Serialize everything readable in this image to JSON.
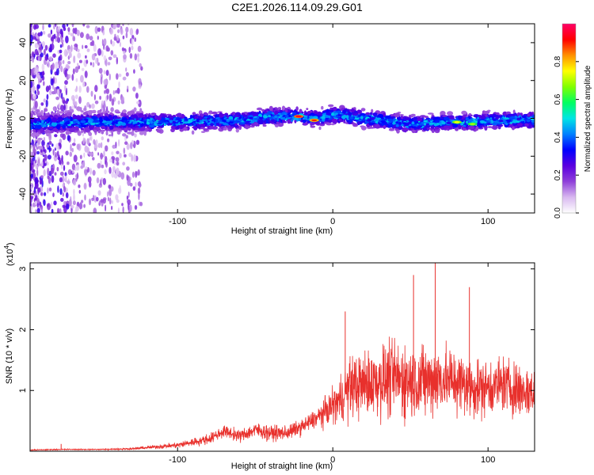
{
  "title": "C2E1.2026.114.09.29.G01",
  "chart_data": [
    {
      "type": "heatmap",
      "xlabel": "Height of straight line (km)",
      "ylabel": "Frequency (Hz)",
      "xlim": [
        -195,
        130
      ],
      "ylim": [
        -50,
        50
      ],
      "xticks": [
        -100,
        0,
        100
      ],
      "yticks": [
        -40,
        -20,
        0,
        20,
        40
      ],
      "colorbar": {
        "label": "Normalized spectral amplitude",
        "range": [
          0,
          1
        ],
        "ticks": [
          0.0,
          0.2,
          0.4,
          0.6,
          0.8
        ],
        "colormap": [
          "#ffffff",
          "#d8b8f0",
          "#8f3fd9",
          "#5a00e0",
          "#0000ff",
          "#0080ff",
          "#00e5e5",
          "#00ff60",
          "#80ff00",
          "#ffff00",
          "#ff9000",
          "#ff0000",
          "#ff0066"
        ]
      },
      "ridge": {
        "x": [
          -195,
          -150,
          -100,
          -60,
          -40,
          -25,
          -10,
          0,
          20,
          50,
          80,
          110,
          130
        ],
        "center_hz": [
          -3,
          -2,
          -2,
          -1,
          1,
          1,
          0,
          2,
          0,
          -3,
          -2,
          -1,
          -1
        ]
      },
      "peaks": [
        {
          "x": -22,
          "y": 1,
          "amplitude": 0.95
        },
        {
          "x": -12,
          "y": -1,
          "amplitude": 0.9
        },
        {
          "x": 80,
          "y": -2,
          "amplitude": 0.75
        },
        {
          "x": 90,
          "y": -3,
          "amplitude": 0.7
        }
      ]
    },
    {
      "type": "line",
      "xlabel": "Height of straight line (km)",
      "ylabel": "SNR (10 * v/v)",
      "scale_label": "(x10",
      "scale_exp": "4",
      "xlim": [
        -195,
        130
      ],
      "ylim": [
        0,
        3.1
      ],
      "xticks": [
        -100,
        0,
        100
      ],
      "yticks": [
        1,
        2,
        3
      ],
      "color": "#e8302c",
      "envelope": {
        "x": [
          -195,
          -175,
          -150,
          -130,
          -120,
          -100,
          -80,
          -70,
          -60,
          -50,
          -40,
          -30,
          -20,
          -10,
          0,
          5,
          10,
          20,
          30,
          40,
          50,
          60,
          70,
          80,
          90,
          100,
          110,
          120,
          130
        ],
        "mean": [
          0.02,
          0.03,
          0.03,
          0.04,
          0.06,
          0.1,
          0.2,
          0.33,
          0.25,
          0.35,
          0.3,
          0.3,
          0.4,
          0.55,
          0.75,
          0.85,
          1.05,
          1.1,
          1.15,
          1.2,
          1.15,
          1.15,
          1.2,
          1.15,
          1.05,
          1.05,
          1.1,
          1.0,
          0.95
        ],
        "spread": [
          0.01,
          0.01,
          0.01,
          0.02,
          0.03,
          0.06,
          0.1,
          0.12,
          0.12,
          0.15,
          0.15,
          0.15,
          0.15,
          0.2,
          0.35,
          0.45,
          0.6,
          0.65,
          0.7,
          0.75,
          0.75,
          0.7,
          0.7,
          0.65,
          0.6,
          0.55,
          0.55,
          0.55,
          0.5
        ]
      },
      "spikes": [
        {
          "x": -175,
          "y": 0.12
        },
        {
          "x": 8,
          "y": 2.3
        },
        {
          "x": 52,
          "y": 2.9
        },
        {
          "x": 66,
          "y": 3.1
        },
        {
          "x": 88,
          "y": 2.7
        }
      ]
    }
  ]
}
